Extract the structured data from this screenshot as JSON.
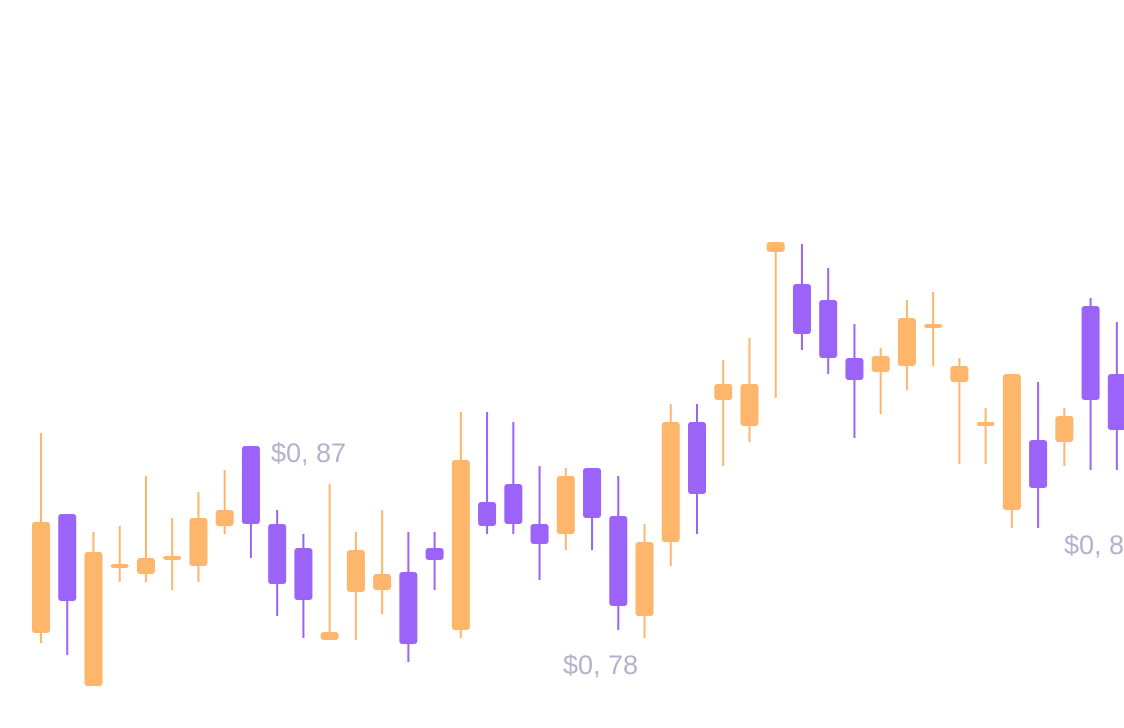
{
  "chart_data": {
    "type": "candlestick",
    "up_color": "#fdb66b",
    "down_color": "#9b63f8",
    "open": [
      0.7765,
      0.836,
      0.75,
      0.809,
      0.806,
      0.813,
      0.81,
      0.83,
      0.87,
      0.831,
      0.819,
      0.773,
      0.797,
      0.798,
      0.807,
      0.819,
      0.778,
      0.842,
      0.851,
      0.831,
      0.826,
      0.859,
      0.835,
      0.785,
      0.822,
      0.882,
      0.893,
      0.88,
      0.967,
      0.951,
      0.943,
      0.914,
      0.907,
      0.91,
      0.929,
      0.902,
      0.88,
      0.838,
      0.873,
      0.872,
      0.94,
      0.906
    ],
    "high": [
      0.8765,
      0.836,
      0.827,
      0.83,
      0.855,
      0.834,
      0.847,
      0.858,
      0.87,
      0.838,
      0.826,
      0.851,
      0.827,
      0.838,
      0.827,
      0.827,
      0.887,
      0.887,
      0.882,
      0.86,
      0.859,
      0.859,
      0.855,
      0.831,
      0.891,
      0.891,
      0.913,
      0.924,
      0.972,
      0.971,
      0.959,
      0.931,
      0.919,
      0.943,
      0.947,
      0.914,
      0.889,
      0.906,
      0.902,
      0.889,
      0.944,
      0.932
    ],
    "low": [
      0.7715,
      0.7655,
      0.75,
      0.802,
      0.802,
      0.798,
      0.802,
      0.826,
      0.814,
      0.785,
      0.774,
      0.773,
      0.773,
      0.786,
      0.762,
      0.798,
      0.774,
      0.826,
      0.826,
      0.803,
      0.818,
      0.818,
      0.778,
      0.774,
      0.81,
      0.826,
      0.86,
      0.872,
      0.894,
      0.918,
      0.906,
      0.874,
      0.886,
      0.898,
      0.91,
      0.861,
      0.861,
      0.829,
      0.829,
      0.86,
      0.858,
      0.858
    ],
    "close": [
      0.832,
      0.7925,
      0.817,
      0.811,
      0.814,
      0.815,
      0.834,
      0.838,
      0.831,
      0.801,
      0.793,
      0.777,
      0.818,
      0.806,
      0.771,
      0.813,
      0.863,
      0.83,
      0.831,
      0.821,
      0.855,
      0.834,
      0.79,
      0.822,
      0.882,
      0.846,
      0.901,
      0.901,
      0.972,
      0.926,
      0.914,
      0.903,
      0.915,
      0.934,
      0.931,
      0.91,
      0.882,
      0.906,
      0.849,
      0.885,
      0.893,
      0.878
    ],
    "annotations": [
      "$0, 87",
      "$0, 78",
      "$0, 8"
    ]
  }
}
